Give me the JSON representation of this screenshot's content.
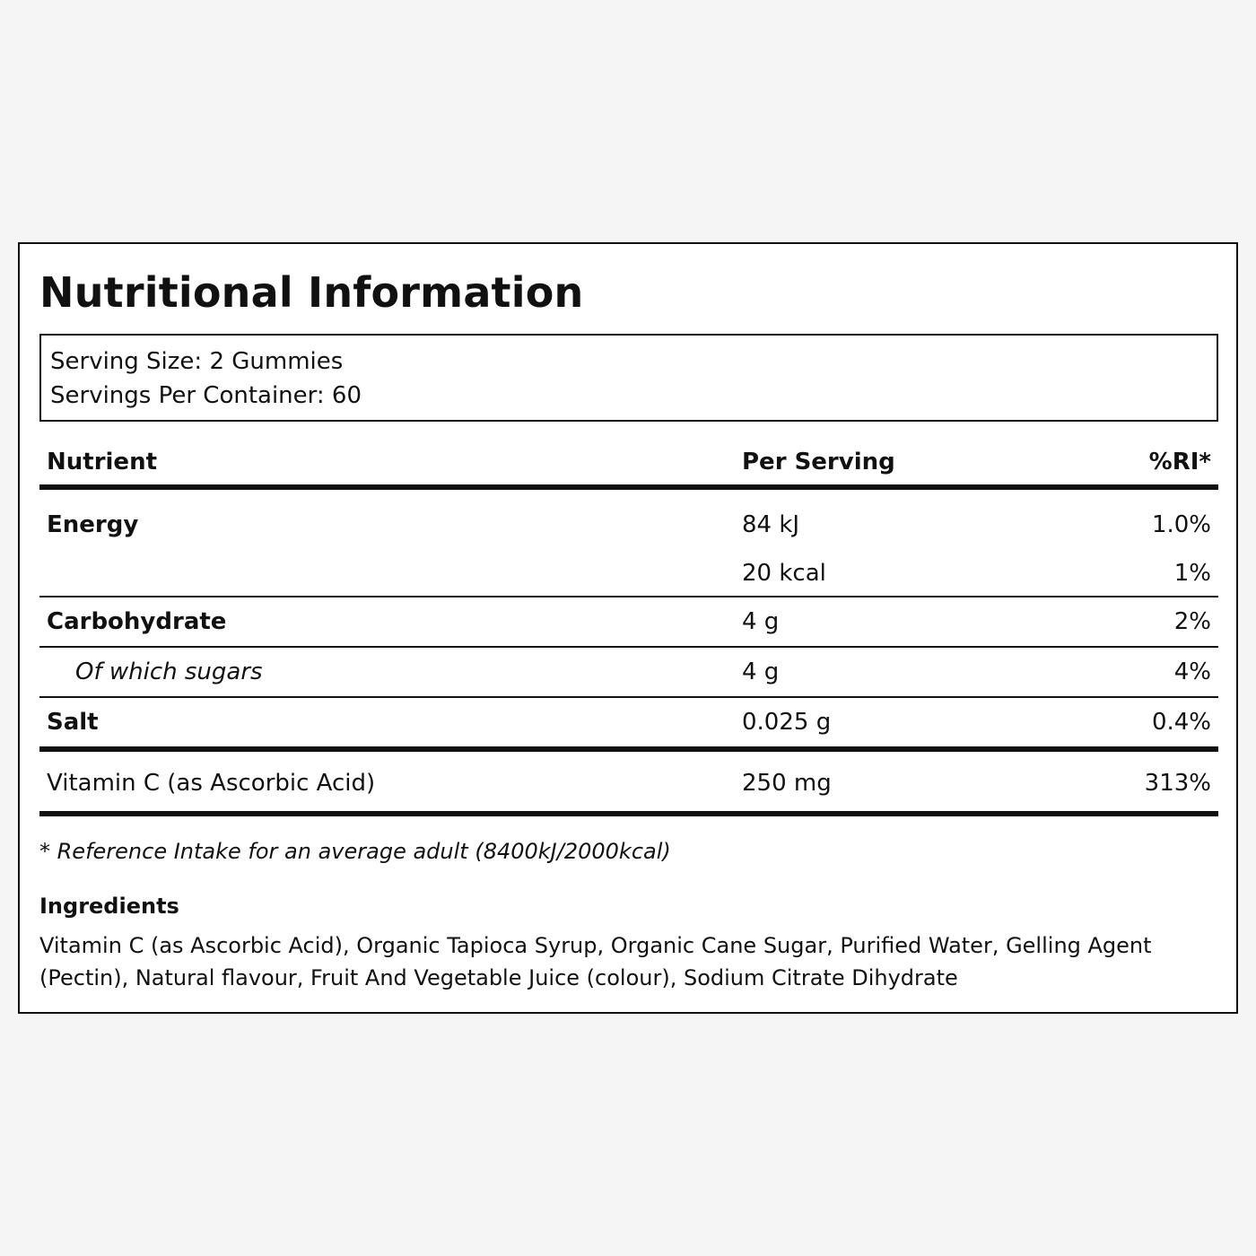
{
  "title": "Nutritional Information",
  "serving": {
    "size": "Serving Size: 2 Gummies",
    "per_container": "Servings Per Container: 60"
  },
  "table": {
    "headers": {
      "nutrient": "Nutrient",
      "per_serving": "Per Serving",
      "ri": "%RI*"
    },
    "energy": {
      "name": "Energy",
      "kj": "84 kJ",
      "kj_ri": "1.0%",
      "kcal": "20 kcal",
      "kcal_ri": "1%"
    },
    "carbohydrate": {
      "name": "Carbohydrate",
      "amount": "4 g",
      "ri": "2%"
    },
    "sugars": {
      "name": "Of which sugars",
      "amount": "4 g",
      "ri": "4%"
    },
    "salt": {
      "name": "Salt",
      "amount": "0.025 g",
      "ri": "0.4%"
    },
    "vitamin_c": {
      "name": "Vitamin C (as Ascorbic Acid)",
      "amount": "250 mg",
      "ri": "313%"
    }
  },
  "footnote": "* Reference Intake for an average adult (8400kJ/2000kcal)",
  "ingredients": {
    "title": "Ingredients",
    "text": "Vitamin C (as Ascorbic Acid), Organic Tapioca Syrup, Organic Cane Sugar, Purified Water, Gelling Agent (Pectin), Natural flavour, Fruit And Vegetable Juice (colour), Sodium Citrate Dihydrate"
  }
}
